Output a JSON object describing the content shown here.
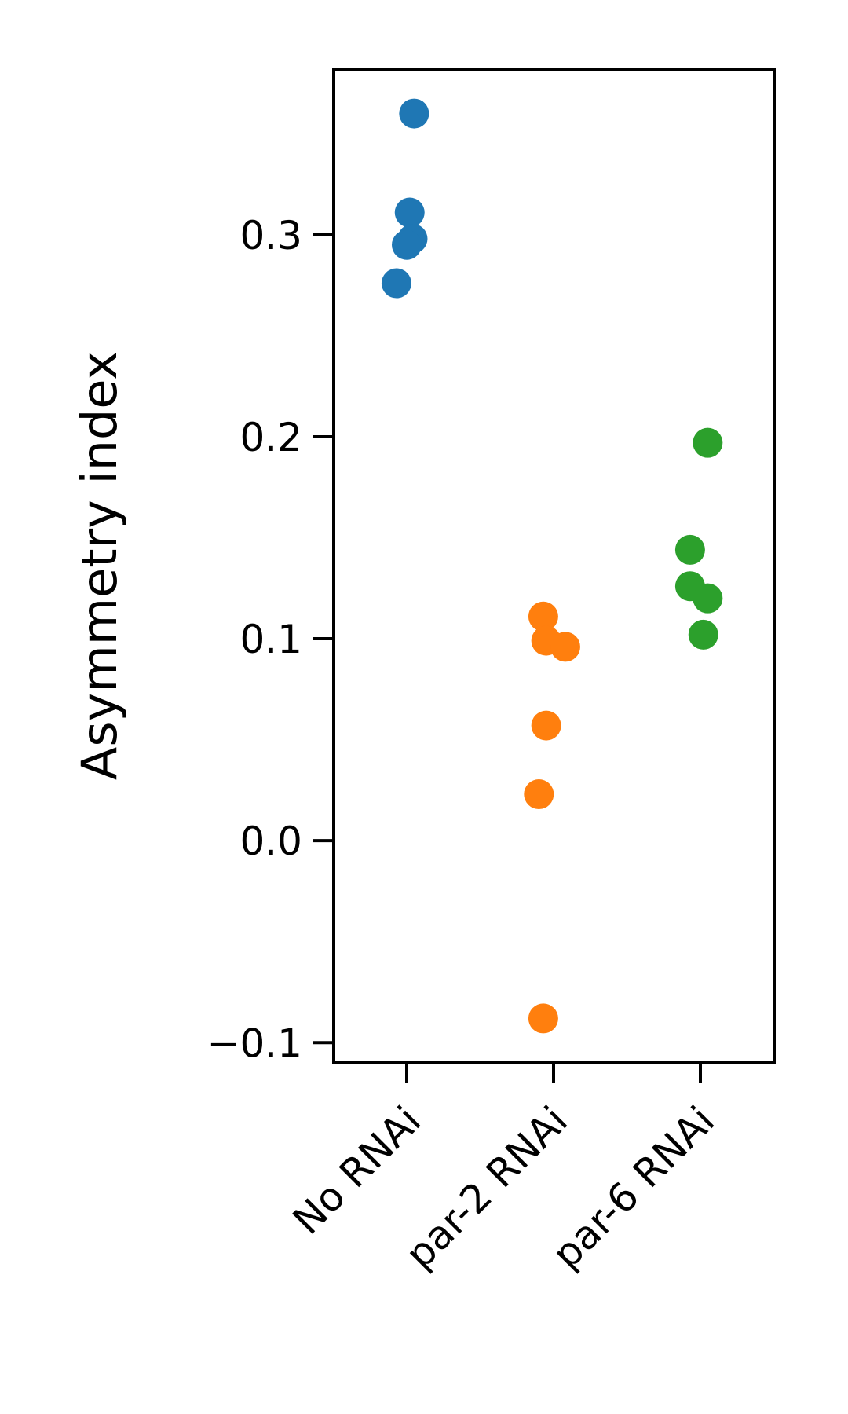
{
  "chart_data": {
    "type": "scatter",
    "title": "",
    "xlabel": "",
    "ylabel": "Asymmetry index",
    "categories": [
      "No RNAi",
      "par-2 RNAi",
      "par-6 RNAi"
    ],
    "y_ticks": [
      -0.1,
      0.0,
      0.1,
      0.2,
      0.3
    ],
    "y_tick_labels": [
      "−0.1",
      "0.0",
      "0.1",
      "0.2",
      "0.3"
    ],
    "ylim": [
      -0.11,
      0.382
    ],
    "grid": false,
    "legend": "none",
    "series": [
      {
        "category": "No RNAi",
        "color": "#1f77b4",
        "points": [
          {
            "offset": 0.05,
            "y": 0.36
          },
          {
            "offset": 0.02,
            "y": 0.311
          },
          {
            "offset": 0.04,
            "y": 0.298
          },
          {
            "offset": 0.0,
            "y": 0.295
          },
          {
            "offset": -0.07,
            "y": 0.276
          }
        ]
      },
      {
        "category": "par-2 RNAi",
        "color": "#ff7f0e",
        "points": [
          {
            "offset": -0.07,
            "y": 0.111
          },
          {
            "offset": -0.05,
            "y": 0.099
          },
          {
            "offset": 0.08,
            "y": 0.096
          },
          {
            "offset": -0.05,
            "y": 0.057
          },
          {
            "offset": -0.1,
            "y": 0.023
          },
          {
            "offset": -0.07,
            "y": -0.088
          }
        ]
      },
      {
        "category": "par-6 RNAi",
        "color": "#2ca02c",
        "points": [
          {
            "offset": 0.05,
            "y": 0.197
          },
          {
            "offset": -0.07,
            "y": 0.144
          },
          {
            "offset": -0.07,
            "y": 0.126
          },
          {
            "offset": 0.05,
            "y": 0.12
          },
          {
            "offset": 0.02,
            "y": 0.102
          }
        ]
      }
    ]
  }
}
